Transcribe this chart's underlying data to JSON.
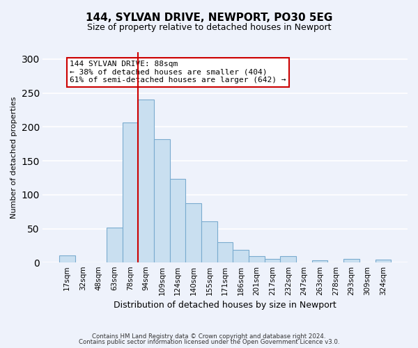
{
  "title": "144, SYLVAN DRIVE, NEWPORT, PO30 5EG",
  "subtitle": "Size of property relative to detached houses in Newport",
  "xlabel": "Distribution of detached houses by size in Newport",
  "ylabel": "Number of detached properties",
  "bar_labels": [
    "17sqm",
    "32sqm",
    "48sqm",
    "63sqm",
    "78sqm",
    "94sqm",
    "109sqm",
    "124sqm",
    "140sqm",
    "155sqm",
    "171sqm",
    "186sqm",
    "201sqm",
    "217sqm",
    "232sqm",
    "247sqm",
    "263sqm",
    "278sqm",
    "293sqm",
    "309sqm",
    "324sqm"
  ],
  "bar_values": [
    11,
    0,
    0,
    52,
    206,
    240,
    182,
    123,
    88,
    61,
    30,
    19,
    10,
    5,
    10,
    0,
    3,
    0,
    5,
    0,
    4
  ],
  "bar_color": "#c9dff0",
  "bar_edge_color": "#7aabcf",
  "vline_label": "94sqm",
  "annotation_title": "144 SYLVAN DRIVE: 88sqm",
  "annotation_line1": "← 38% of detached houses are smaller (404)",
  "annotation_line2": "61% of semi-detached houses are larger (642) →",
  "annotation_box_color": "#ffffff",
  "annotation_box_edge": "#cc0000",
  "vline_color": "#cc0000",
  "ylim": [
    0,
    310
  ],
  "yticks": [
    0,
    50,
    100,
    150,
    200,
    250,
    300
  ],
  "footer1": "Contains HM Land Registry data © Crown copyright and database right 2024.",
  "footer2": "Contains public sector information licensed under the Open Government Licence v3.0.",
  "bg_color": "#eef2fb",
  "grid_color": "#ffffff",
  "title_fontsize": 11,
  "subtitle_fontsize": 9,
  "ylabel_fontsize": 8,
  "xlabel_fontsize": 9
}
